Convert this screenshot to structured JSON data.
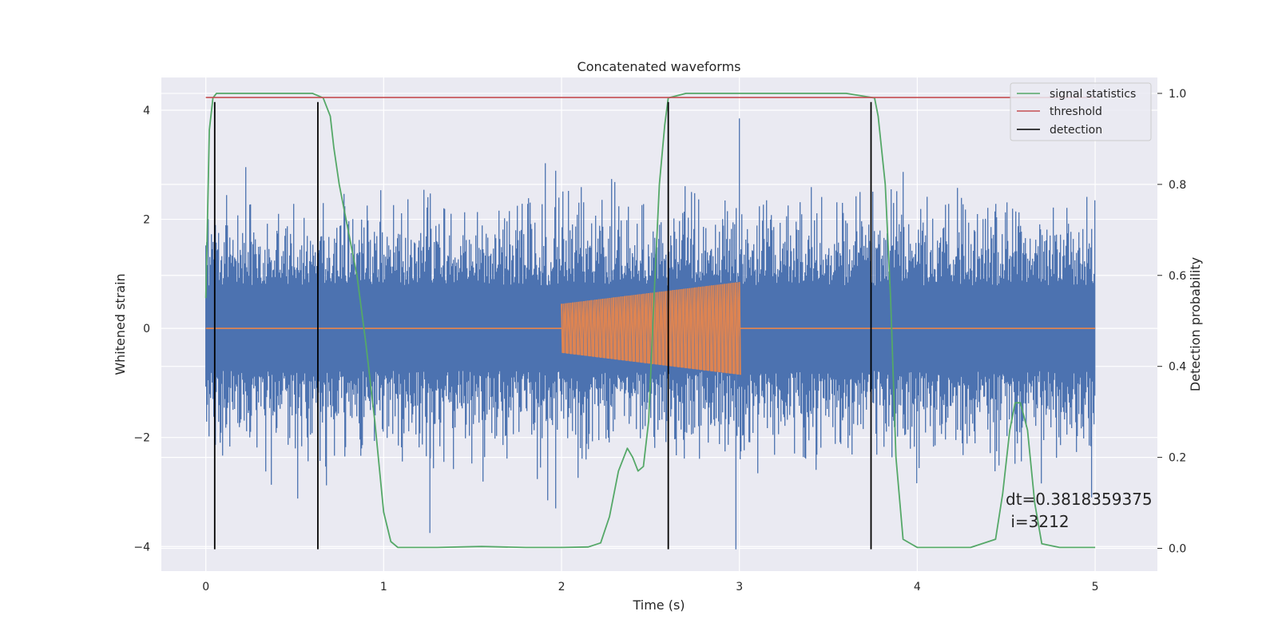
{
  "chart_data": {
    "type": "line",
    "title": "Concatenated waveforms",
    "xlabel": "Time (s)",
    "ylabel": "Whitened strain",
    "y2label": "Detection probability",
    "xlim": [
      -0.25,
      5.35
    ],
    "ylim": [
      -4.45,
      4.6
    ],
    "y2lim": [
      -0.05,
      1.035
    ],
    "x_ticks": [
      0,
      1,
      2,
      3,
      4,
      5
    ],
    "y_ticks": [
      -4,
      -2,
      0,
      2,
      4
    ],
    "y2_ticks": [
      0.0,
      0.2,
      0.4,
      0.6,
      0.8,
      1.0
    ],
    "grid": true,
    "legend_position": "top-right",
    "legend": [
      "signal statistics",
      "threshold",
      "detection"
    ],
    "colors": {
      "strain": "#4c72b0",
      "injection": "#dd8452",
      "signal_statistics": "#55a868",
      "threshold": "#c44e52",
      "detection": "#000000",
      "axes_bg": "#eaeaf2",
      "grid": "#ffffff"
    },
    "series": [
      {
        "name": "signal statistics",
        "axis": "right",
        "x": [
          0,
          0.02,
          0.04,
          0.06,
          0.1,
          0.2,
          0.5,
          0.6,
          0.66,
          0.7,
          0.72,
          0.75,
          0.8,
          0.85,
          0.9,
          0.95,
          1.0,
          1.04,
          1.08,
          1.15,
          1.3,
          1.55,
          1.8,
          2.0,
          2.15,
          2.22,
          2.27,
          2.32,
          2.37,
          2.4,
          2.43,
          2.46,
          2.49,
          2.52,
          2.55,
          2.58,
          2.6,
          2.7,
          3.6,
          3.76,
          3.78,
          3.82,
          3.85,
          3.88,
          3.92,
          4.0,
          4.3,
          4.44,
          4.48,
          4.52,
          4.55,
          4.58,
          4.62,
          4.66,
          4.7,
          4.8,
          5.0
        ],
        "y": [
          0.55,
          0.92,
          0.99,
          1.0,
          1.0,
          1.0,
          1.0,
          1.0,
          0.99,
          0.95,
          0.88,
          0.8,
          0.7,
          0.6,
          0.45,
          0.28,
          0.08,
          0.015,
          0.002,
          0.002,
          0.002,
          0.004,
          0.002,
          0.002,
          0.003,
          0.012,
          0.07,
          0.17,
          0.22,
          0.2,
          0.17,
          0.18,
          0.28,
          0.55,
          0.8,
          0.93,
          0.99,
          1.0,
          1.0,
          0.99,
          0.95,
          0.8,
          0.55,
          0.2,
          0.02,
          0.002,
          0.002,
          0.02,
          0.12,
          0.26,
          0.32,
          0.32,
          0.26,
          0.1,
          0.01,
          0.002,
          0.002
        ]
      },
      {
        "name": "threshold",
        "axis": "right",
        "x": [
          0,
          5
        ],
        "y": [
          0.991,
          0.991
        ]
      },
      {
        "name": "detection",
        "axis": "left",
        "x": [
          0.05,
          0.63,
          2.6,
          3.74
        ],
        "ymin": -4.05,
        "ymax": 4.15
      }
    ],
    "strain": {
      "axis": "left",
      "x_range": [
        0,
        5
      ],
      "core_amplitude": 0.78,
      "typical_peak_range": [
        1.5,
        3.0
      ],
      "notable_peaks": [
        {
          "x": 2.6,
          "y": 4.1
        },
        {
          "x": 3.0,
          "y": 3.85
        },
        {
          "x": 2.98,
          "y": -4.05
        },
        {
          "x": 1.26,
          "y": -3.75
        },
        {
          "x": 4.98,
          "y": -3.1
        }
      ]
    },
    "injection": {
      "axis": "left",
      "x_range": [
        2,
        3
      ],
      "amplitude_start": 0.45,
      "amplitude_end": 0.85,
      "baseline": 0
    },
    "annotations": [
      "dt=0.3818359375",
      " i=3212"
    ]
  }
}
